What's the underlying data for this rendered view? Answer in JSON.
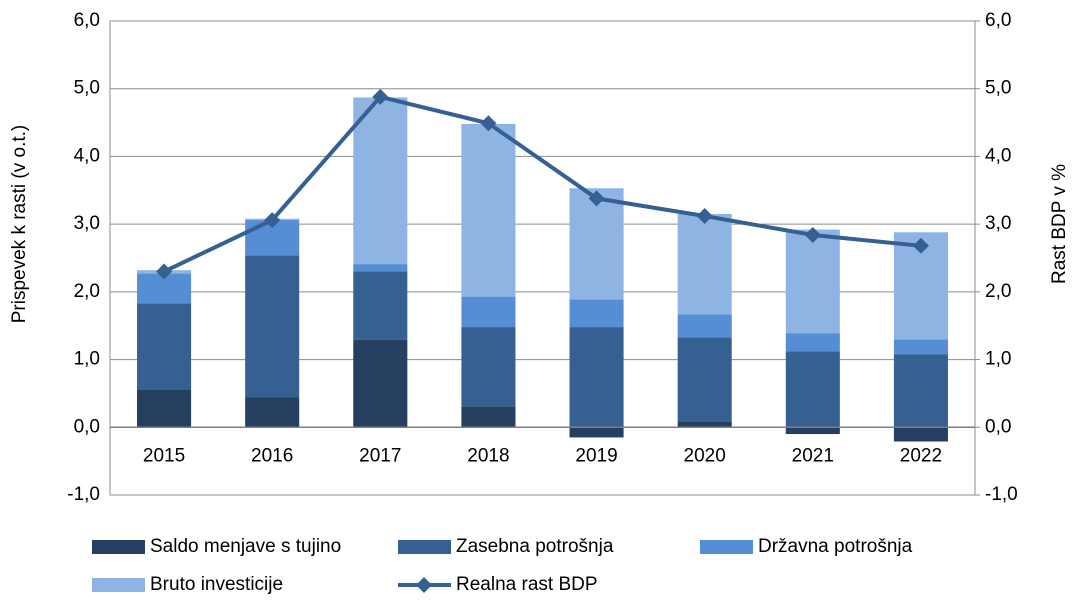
{
  "chart_data": {
    "type": "bar",
    "stacked": true,
    "categories": [
      "2015",
      "2016",
      "2017",
      "2018",
      "2019",
      "2020",
      "2021",
      "2022"
    ],
    "y_label": "Prispevek k rasti (v o.t.)",
    "y2_label": "Rast BDP v %",
    "series": [
      {
        "name": "Saldo menjave s tujino",
        "type": "bar",
        "color": "#243f60",
        "values": [
          0.56,
          0.44,
          1.29,
          0.31,
          -0.15,
          0.09,
          -0.1,
          -0.21
        ]
      },
      {
        "name": "Zasebna potrošnja",
        "type": "bar",
        "color": "#376092",
        "values": [
          1.27,
          2.1,
          1.01,
          1.17,
          1.48,
          1.24,
          1.12,
          1.08
        ]
      },
      {
        "name": "Državna potrošnja",
        "type": "bar",
        "color": "#558ed5",
        "values": [
          0.44,
          0.52,
          0.11,
          0.45,
          0.41,
          0.34,
          0.27,
          0.22
        ]
      },
      {
        "name": "Bruto investicije",
        "type": "bar",
        "color": "#8eb4e3",
        "values": [
          0.05,
          0.02,
          2.46,
          2.55,
          1.64,
          1.48,
          1.53,
          1.58
        ]
      },
      {
        "name": "Realna rast BDP",
        "type": "line",
        "axis": "y2",
        "color": "#366092",
        "values": [
          2.3,
          3.06,
          4.88,
          4.49,
          3.38,
          3.12,
          2.84,
          2.68
        ]
      }
    ],
    "ylim": [
      -1,
      6
    ],
    "yticks": [
      {
        "value": -1,
        "label": "-1,0"
      },
      {
        "value": 0,
        "label": "0,0"
      },
      {
        "value": 1,
        "label": "1,0"
      },
      {
        "value": 2,
        "label": "2,0"
      },
      {
        "value": 3,
        "label": "3,0"
      },
      {
        "value": 4,
        "label": "4,0"
      },
      {
        "value": 5,
        "label": "5,0"
      },
      {
        "value": 6,
        "label": "6,0"
      }
    ],
    "y2lim": [
      -1,
      6
    ],
    "y2ticks": [
      {
        "value": -1,
        "label": "-1,0"
      },
      {
        "value": 0,
        "label": "0,0"
      },
      {
        "value": 1,
        "label": "1,0"
      },
      {
        "value": 2,
        "label": "2,0"
      },
      {
        "value": 3,
        "label": "3,0"
      },
      {
        "value": 4,
        "label": "4,0"
      },
      {
        "value": 5,
        "label": "5,0"
      },
      {
        "value": 6,
        "label": "6,0"
      }
    ],
    "grid": true,
    "legend": "bottom"
  }
}
